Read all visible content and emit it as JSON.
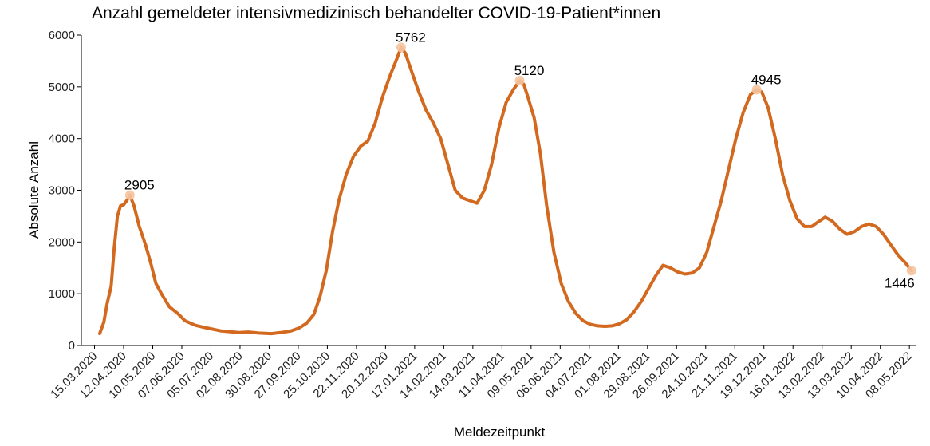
{
  "chart_data": {
    "type": "line",
    "title": "Anzahl gemeldeter intensivmedizinisch behandelter COVID-19-Patient*innen",
    "xlabel": "Meldezeitpunkt",
    "ylabel": "Absolute Anzahl",
    "xlim": [
      "2020-03-10",
      "2022-05-14"
    ],
    "ylim": [
      0,
      6000
    ],
    "yticks": [
      0,
      1000,
      2000,
      3000,
      4000,
      5000,
      6000
    ],
    "ytick_labels": [
      "0",
      "1000",
      "2000",
      "3000",
      "4000",
      "5000",
      "6000"
    ],
    "xticks": [
      "2020-03-15",
      "2020-04-12",
      "2020-05-10",
      "2020-06-07",
      "2020-07-05",
      "2020-08-02",
      "2020-08-30",
      "2020-09-27",
      "2020-10-25",
      "2020-11-22",
      "2020-12-20",
      "2021-01-17",
      "2021-02-14",
      "2021-03-14",
      "2021-04-11",
      "2021-05-09",
      "2021-06-06",
      "2021-07-04",
      "2021-08-01",
      "2021-08-29",
      "2021-09-26",
      "2021-10-24",
      "2021-11-21",
      "2021-12-19",
      "2022-01-16",
      "2022-02-13",
      "2022-03-13",
      "2022-04-10",
      "2022-05-08"
    ],
    "xtick_labels": [
      "15.03.2020",
      "12.04.2020",
      "10.05.2020",
      "07.06.2020",
      "05.07.2020",
      "02.08.2020",
      "30.08.2020",
      "27.09.2020",
      "25.10.2020",
      "22.11.2020",
      "20.12.2020",
      "17.01.2021",
      "14.02.2021",
      "14.03.2021",
      "11.04.2021",
      "09.05.2021",
      "06.06.2021",
      "04.07.2021",
      "01.08.2021",
      "29.08.2021",
      "26.09.2021",
      "24.10.2021",
      "21.11.2021",
      "19.12.2021",
      "16.01.2022",
      "13.02.2022",
      "13.03.2022",
      "10.04.2022",
      "08.05.2022"
    ],
    "grid": false,
    "series": [
      {
        "color": "#d2691e",
        "points": [
          [
            "2020-03-20",
            230
          ],
          [
            "2020-03-24",
            450
          ],
          [
            "2020-03-27",
            800
          ],
          [
            "2020-03-31",
            1150
          ],
          [
            "2020-04-03",
            1900
          ],
          [
            "2020-04-06",
            2500
          ],
          [
            "2020-04-09",
            2700
          ],
          [
            "2020-04-12",
            2720
          ],
          [
            "2020-04-15",
            2800
          ],
          [
            "2020-04-18",
            2905
          ],
          [
            "2020-04-22",
            2700
          ],
          [
            "2020-04-27",
            2300
          ],
          [
            "2020-05-03",
            1950
          ],
          [
            "2020-05-08",
            1600
          ],
          [
            "2020-05-13",
            1200
          ],
          [
            "2020-05-19",
            980
          ],
          [
            "2020-05-26",
            750
          ],
          [
            "2020-06-03",
            620
          ],
          [
            "2020-06-10",
            480
          ],
          [
            "2020-06-20",
            390
          ],
          [
            "2020-07-01",
            340
          ],
          [
            "2020-07-15",
            280
          ],
          [
            "2020-08-01",
            250
          ],
          [
            "2020-08-10",
            260
          ],
          [
            "2020-08-20",
            240
          ],
          [
            "2020-09-01",
            230
          ],
          [
            "2020-09-10",
            250
          ],
          [
            "2020-09-20",
            280
          ],
          [
            "2020-09-28",
            340
          ],
          [
            "2020-10-05",
            430
          ],
          [
            "2020-10-12",
            600
          ],
          [
            "2020-10-18",
            950
          ],
          [
            "2020-10-24",
            1450
          ],
          [
            "2020-10-30",
            2200
          ],
          [
            "2020-11-05",
            2800
          ],
          [
            "2020-11-12",
            3300
          ],
          [
            "2020-11-19",
            3650
          ],
          [
            "2020-11-26",
            3850
          ],
          [
            "2020-12-03",
            3950
          ],
          [
            "2020-12-10",
            4300
          ],
          [
            "2020-12-17",
            4800
          ],
          [
            "2020-12-24",
            5200
          ],
          [
            "2020-12-31",
            5550
          ],
          [
            "2021-01-04",
            5762
          ],
          [
            "2021-01-08",
            5650
          ],
          [
            "2021-01-14",
            5300
          ],
          [
            "2021-01-21",
            4900
          ],
          [
            "2021-01-28",
            4550
          ],
          [
            "2021-02-04",
            4300
          ],
          [
            "2021-02-11",
            4000
          ],
          [
            "2021-02-18",
            3500
          ],
          [
            "2021-02-25",
            3000
          ],
          [
            "2021-03-04",
            2850
          ],
          [
            "2021-03-11",
            2800
          ],
          [
            "2021-03-18",
            2750
          ],
          [
            "2021-03-25",
            3000
          ],
          [
            "2021-04-01",
            3500
          ],
          [
            "2021-04-08",
            4200
          ],
          [
            "2021-04-15",
            4700
          ],
          [
            "2021-04-22",
            4950
          ],
          [
            "2021-04-28",
            5120
          ],
          [
            "2021-05-02",
            5050
          ],
          [
            "2021-05-06",
            4800
          ],
          [
            "2021-05-12",
            4400
          ],
          [
            "2021-05-18",
            3700
          ],
          [
            "2021-05-24",
            2700
          ],
          [
            "2021-05-31",
            1800
          ],
          [
            "2021-06-07",
            1200
          ],
          [
            "2021-06-14",
            850
          ],
          [
            "2021-06-21",
            620
          ],
          [
            "2021-06-28",
            480
          ],
          [
            "2021-07-05",
            410
          ],
          [
            "2021-07-12",
            380
          ],
          [
            "2021-07-19",
            370
          ],
          [
            "2021-07-26",
            380
          ],
          [
            "2021-08-02",
            420
          ],
          [
            "2021-08-09",
            500
          ],
          [
            "2021-08-16",
            650
          ],
          [
            "2021-08-23",
            850
          ],
          [
            "2021-08-30",
            1100
          ],
          [
            "2021-09-06",
            1350
          ],
          [
            "2021-09-13",
            1550
          ],
          [
            "2021-09-20",
            1500
          ],
          [
            "2021-09-27",
            1420
          ],
          [
            "2021-10-04",
            1380
          ],
          [
            "2021-10-11",
            1400
          ],
          [
            "2021-10-18",
            1500
          ],
          [
            "2021-10-25",
            1800
          ],
          [
            "2021-11-01",
            2300
          ],
          [
            "2021-11-08",
            2800
          ],
          [
            "2021-11-15",
            3400
          ],
          [
            "2021-11-22",
            4000
          ],
          [
            "2021-11-29",
            4500
          ],
          [
            "2021-12-06",
            4850
          ],
          [
            "2021-12-12",
            4945
          ],
          [
            "2021-12-17",
            4900
          ],
          [
            "2021-12-23",
            4600
          ],
          [
            "2021-12-30",
            4000
          ],
          [
            "2022-01-06",
            3300
          ],
          [
            "2022-01-13",
            2800
          ],
          [
            "2022-01-20",
            2450
          ],
          [
            "2022-01-27",
            2300
          ],
          [
            "2022-02-03",
            2300
          ],
          [
            "2022-02-10",
            2400
          ],
          [
            "2022-02-16",
            2480
          ],
          [
            "2022-02-23",
            2400
          ],
          [
            "2022-03-02",
            2250
          ],
          [
            "2022-03-09",
            2150
          ],
          [
            "2022-03-16",
            2200
          ],
          [
            "2022-03-23",
            2300
          ],
          [
            "2022-03-30",
            2350
          ],
          [
            "2022-04-06",
            2300
          ],
          [
            "2022-04-13",
            2150
          ],
          [
            "2022-04-20",
            1950
          ],
          [
            "2022-04-27",
            1750
          ],
          [
            "2022-05-04",
            1600
          ],
          [
            "2022-05-10",
            1446
          ]
        ]
      }
    ],
    "annotations": [
      {
        "label": "2905",
        "x": "2020-04-18",
        "y": 2905
      },
      {
        "label": "5762",
        "x": "2021-01-04",
        "y": 5762
      },
      {
        "label": "5120",
        "x": "2021-04-28",
        "y": 5120
      },
      {
        "label": "4945",
        "x": "2021-12-12",
        "y": 4945
      },
      {
        "label": "1446",
        "x": "2022-05-10",
        "y": 1446
      }
    ],
    "marker_color": "#f5c4a0"
  }
}
